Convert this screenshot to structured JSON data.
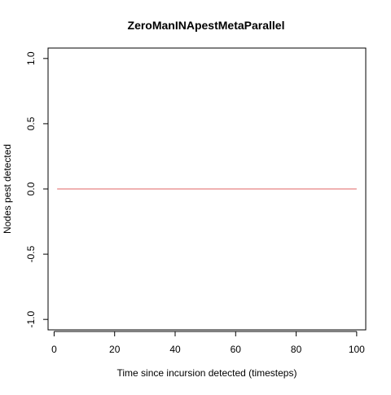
{
  "chart_data": {
    "type": "line",
    "title": "ZeroManINApestMetaParallel",
    "xlabel": "Time since incursion detected (timesteps)",
    "ylabel": "Nodes pest detected",
    "xlim": [
      -2,
      103
    ],
    "ylim": [
      -1.08,
      1.08
    ],
    "x_ticks": [
      "0",
      "20",
      "40",
      "60",
      "80",
      "100"
    ],
    "y_ticks": [
      "-1.0",
      "-0.5",
      "0.0",
      "0.5",
      "1.0"
    ],
    "grid": false,
    "series": [
      {
        "color": "#e06666",
        "x": [
          1,
          100
        ],
        "y": [
          0,
          0
        ]
      }
    ]
  }
}
